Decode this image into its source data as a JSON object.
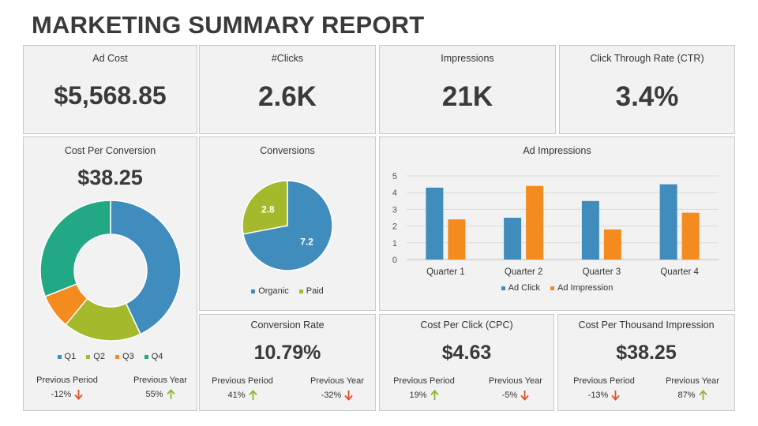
{
  "header": {
    "title": "MARKETING SUMMARY REPORT"
  },
  "kpis": {
    "ad_cost": {
      "label": "Ad Cost",
      "value": "$5,568.85"
    },
    "clicks": {
      "label": "#Clicks",
      "value": "2.6K"
    },
    "impressions": {
      "label": "Impressions",
      "value": "21K"
    },
    "ctr": {
      "label": "Click Through Rate (CTR)",
      "value": "3.4%"
    }
  },
  "cpc_conversion": {
    "label": "Cost Per Conversion",
    "value": "$38.25",
    "prev_period_label": "Previous Period",
    "prev_period_value": "-12%",
    "prev_year_label": "Previous Year",
    "prev_year_value": "55%"
  },
  "conversion_rate": {
    "label": "Conversion Rate",
    "value": "10.79%",
    "prev_period_label": "Previous Period",
    "prev_period_value": "41%",
    "prev_year_label": "Previous Year",
    "prev_year_value": "-32%"
  },
  "cost_per_click": {
    "label": "Cost Per Click (CPC)",
    "value": "$4.63",
    "prev_period_label": "Previous Period",
    "prev_period_value": "19%",
    "prev_year_label": "Previous Year",
    "prev_year_value": "-5%"
  },
  "cost_per_thousand": {
    "label": "Cost Per Thousand Impression",
    "value": "$38.25",
    "prev_period_label": "Previous Period",
    "prev_period_value": "-13%",
    "prev_year_label": "Previous Year",
    "prev_year_value": "87%"
  },
  "colors": {
    "up": "#8cb832",
    "down": "#e0502a",
    "blue": "#3f8cbd",
    "orange": "#f48b1f",
    "green": "#a4b92b",
    "teal": "#22a884"
  },
  "chart_data": [
    {
      "type": "pie",
      "variant": "donut",
      "title": "",
      "labels": [
        "Q1",
        "Q2",
        "Q3",
        "Q4"
      ],
      "values": [
        43,
        18,
        8,
        31
      ],
      "colors": [
        "#3f8cbd",
        "#a4b92b",
        "#f48b1f",
        "#22a884"
      ],
      "legend": "bottom"
    },
    {
      "type": "pie",
      "title": "Conversions",
      "labels": [
        "Organic",
        "Paid"
      ],
      "values": [
        7.2,
        2.8
      ],
      "data_labels": [
        "7.2",
        "2.8"
      ],
      "colors": [
        "#3f8cbd",
        "#a4b92b"
      ],
      "legend": "bottom"
    },
    {
      "type": "bar",
      "title": "Ad Impressions",
      "categories": [
        "Quarter 1",
        "Quarter 2",
        "Quarter 3",
        "Quarter 4"
      ],
      "series": [
        {
          "name": "Ad Click",
          "values": [
            4.3,
            2.5,
            3.5,
            4.5
          ],
          "color": "#3f8cbd"
        },
        {
          "name": "Ad Impression",
          "values": [
            2.4,
            4.4,
            1.8,
            2.8
          ],
          "color": "#f48b1f"
        }
      ],
      "ylim": [
        0,
        5
      ],
      "yticks": [
        "0",
        "1",
        "2",
        "3",
        "4",
        "5"
      ],
      "grid": true,
      "legend": "bottom"
    }
  ]
}
